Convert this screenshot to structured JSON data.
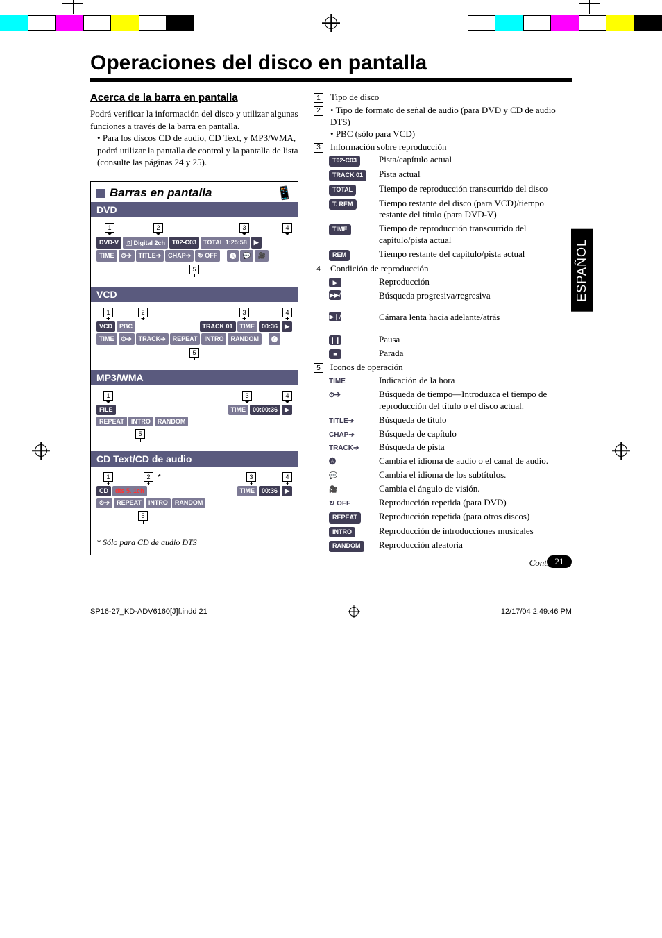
{
  "doc": {
    "title": "Operaciones del disco en pantalla",
    "side_tab": "ESPAÑOL",
    "page_number": "21",
    "continue": "Continúa....",
    "footer_left": "SP16-27_KD-ADV6160[J]f.indd   21",
    "footer_right": "12/17/04   2:49:46 PM",
    "subhead": "Acerca de la barra en pantalla",
    "intro_1": "Podrá verificar la información del disco y utilizar algunas funciones a través de la barra en pantalla.",
    "intro_bullet": "Para los discos CD de audio, CD Text, y MP3/WMA, podrá utilizar la pantalla de control y la pantalla de lista (consulte las páginas 24 y 25).",
    "panel_title": "Barras en pantalla",
    "footnote": "*  Sólo para CD de audio DTS"
  },
  "sections": {
    "dvd": {
      "head": "DVD",
      "row1": {
        "a": "DVD-V",
        "b": "🄳 Digital 2ch",
        "c": "T02-C03",
        "d": "TOTAL",
        "e": "1:25:58",
        "f": "▶"
      },
      "row2": {
        "a": "TIME",
        "b": "⏱➔",
        "c": "TITLE➔",
        "d": "CHAP➔",
        "e": "↻ OFF",
        "f": "🅐",
        "g": "💬",
        "h": "🎥"
      }
    },
    "vcd": {
      "head": "VCD",
      "row1": {
        "a": "VCD",
        "b": "PBC",
        "c": "TRACK 01",
        "d": "TIME",
        "e": "00:36",
        "f": "▶"
      },
      "row2": {
        "a": "TIME",
        "b": "⏱➔",
        "c": "TRACK➔",
        "d": "REPEAT",
        "e": "INTRO",
        "f": "RANDOM",
        "g": "🅐"
      }
    },
    "mp3": {
      "head": "MP3/WMA",
      "row1": {
        "a": "FILE",
        "b": "TIME",
        "c": "00:00:36",
        "d": "▶"
      },
      "row2": {
        "a": "REPEAT",
        "b": "INTRO",
        "c": "RANDOM"
      }
    },
    "cdtext": {
      "head": "CD Text/CD de audio",
      "row1": {
        "a": "CD",
        "b": "dts  5. 1ch",
        "c": "TIME",
        "d": "00:36",
        "e": "▶"
      },
      "row2": {
        "a": "⏱➔",
        "b": "REPEAT",
        "c": "INTRO",
        "d": "RANDOM"
      }
    }
  },
  "legend": {
    "l1": "Tipo de disco",
    "l2a": "Tipo de formato de señal de audio (para DVD y CD de audio DTS)",
    "l2b": "PBC (sólo para VCD)",
    "l3": "Información sobre reproducción",
    "l3_items": [
      {
        "k": "T02-C03",
        "v": "Pista/capítulo actual",
        "style": "pill"
      },
      {
        "k": "TRACK 01",
        "v": "Pista actual",
        "style": "pill"
      },
      {
        "k": "TOTAL",
        "v": "Tiempo de reproducción transcurrido del disco",
        "style": "pill"
      },
      {
        "k": "T. REM",
        "v": "Tiempo restante del disco (para VCD)/tiempo restante del título (para DVD-V)",
        "style": "pill"
      },
      {
        "k": "TIME",
        "v": "Tiempo de reproducción transcurrido del capítulo/pista actual",
        "style": "pill"
      },
      {
        "k": "REM",
        "v": "Tiempo restante del capítulo/pista actual",
        "style": "pill"
      }
    ],
    "l4": "Condición de reproducción",
    "l4_items": [
      {
        "k": "▶",
        "v": "Reproducción"
      },
      {
        "k": "▶▶/◀◀",
        "v": "Búsqueda progresiva/regresiva"
      },
      {
        "k": "▶❙/❙◀",
        "v": "Cámara lenta hacia adelante/atrás"
      },
      {
        "k": "❙❙",
        "v": "Pausa"
      },
      {
        "k": "■",
        "v": "Parada"
      }
    ],
    "l5": "Iconos de operación",
    "l5_items": [
      {
        "k": "TIME",
        "v": "Indicación de la hora",
        "style": "txt"
      },
      {
        "k": "⏱➔",
        "v": "Búsqueda de tiempo—Introduzca el tiempo de reproducción del título o el disco actual.",
        "style": "txt"
      },
      {
        "k": "TITLE➔",
        "v": "Búsqueda de título",
        "style": "txt"
      },
      {
        "k": "CHAP➔",
        "v": "Búsqueda de capítulo",
        "style": "txt"
      },
      {
        "k": "TRACK➔",
        "v": "Búsqueda de pista",
        "style": "txt"
      },
      {
        "k": "🅐",
        "v": "Cambia el idioma de audio o el canal de audio.",
        "style": "txt"
      },
      {
        "k": "💬",
        "v": "Cambia el idioma de los subtítulos.",
        "style": "txt"
      },
      {
        "k": "🎥",
        "v": "Cambia el ángulo de visión.",
        "style": "txt"
      },
      {
        "k": "↻ OFF",
        "v": "Reproducción repetida (para DVD)",
        "style": "txt"
      },
      {
        "k": "REPEAT",
        "v": "Reproducción repetida (para otros discos)",
        "style": "pill"
      },
      {
        "k": "INTRO",
        "v": "Reproducción de introducciones musicales",
        "style": "pill"
      },
      {
        "k": "RANDOM",
        "v": "Reproducción aleatoria",
        "style": "pill"
      }
    ]
  },
  "colors": {
    "accent": "#5a5a7e",
    "chip": "#403d55"
  }
}
